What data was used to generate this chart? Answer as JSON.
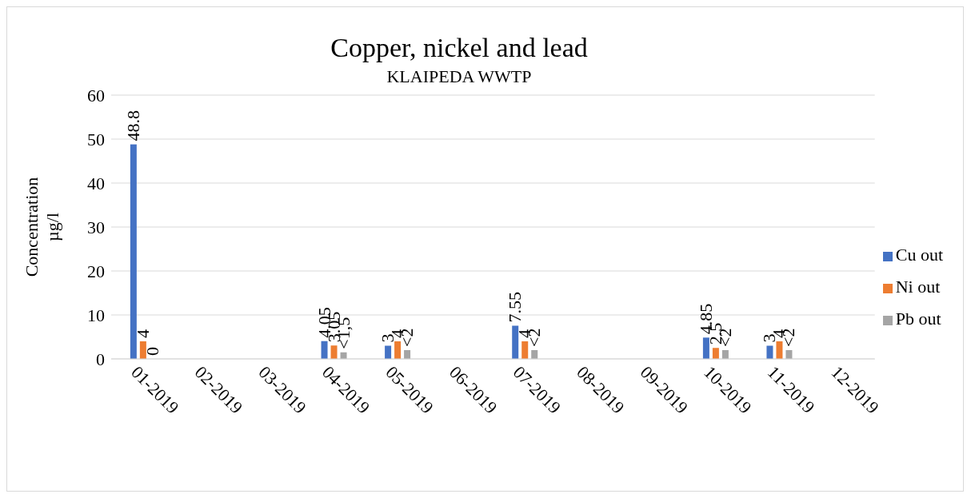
{
  "chart_data": {
    "type": "bar",
    "title": "Copper, nickel and lead",
    "subtitle": "KLAIPEDA WWTP",
    "ylabel": "Concentration µg/l",
    "categories": [
      "01-2019",
      "02-2019",
      "03-2019",
      "04-2019",
      "05-2019",
      "06-2019",
      "07-2019",
      "08-2019",
      "09-2019",
      "10-2019",
      "11-2019",
      "12-2019"
    ],
    "series": [
      {
        "name": "Cu out",
        "color": "#4472c4",
        "values": [
          48.8,
          null,
          null,
          4.05,
          3,
          null,
          7.55,
          null,
          null,
          4.85,
          3,
          null
        ],
        "value_labels": [
          "48.8",
          null,
          null,
          "4.05",
          "3",
          null,
          "7.55",
          null,
          null,
          "4.85",
          "3",
          null
        ]
      },
      {
        "name": "Ni out",
        "color": "#ed7d31",
        "values": [
          4,
          null,
          null,
          3.05,
          4,
          null,
          4,
          null,
          null,
          2.5,
          4,
          null
        ],
        "value_labels": [
          "4",
          null,
          null,
          "3.05",
          "4",
          null,
          "4",
          null,
          null,
          "2.5",
          "4",
          null
        ]
      },
      {
        "name": "Pb out",
        "color": "#a5a5a5",
        "values": [
          0,
          null,
          null,
          1.5,
          2,
          null,
          2,
          null,
          null,
          2,
          2,
          null
        ],
        "value_labels": [
          "0",
          null,
          null,
          "<1,5",
          "<2",
          null,
          "<2",
          null,
          null,
          "<2",
          "<2",
          null
        ]
      }
    ],
    "ylim": [
      0,
      60
    ],
    "yticks": [
      0,
      10,
      20,
      30,
      40,
      50,
      60
    ],
    "grid": "y",
    "legend": "right"
  }
}
